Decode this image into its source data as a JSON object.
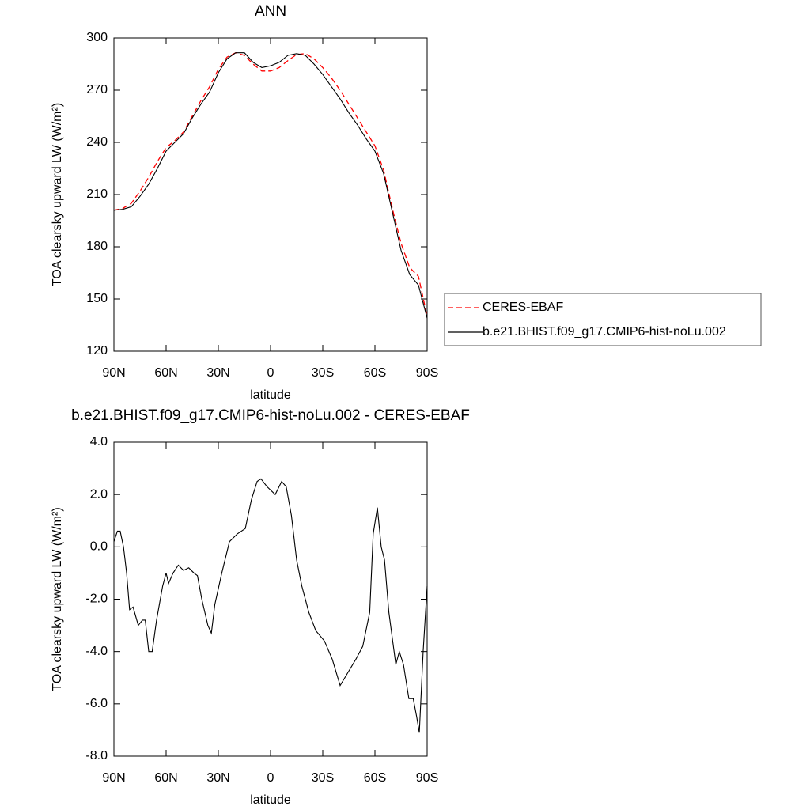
{
  "chart_data": [
    {
      "type": "line",
      "title": "ANN",
      "xlabel": "latitude",
      "ylabel": "TOA clearsky upward LW (W/m²)",
      "x": [
        90,
        85,
        80,
        75,
        70,
        65,
        60,
        55,
        50,
        45,
        40,
        35,
        30,
        25,
        20,
        15,
        10,
        5,
        0,
        -5,
        -10,
        -15,
        -20,
        -25,
        -30,
        -35,
        -40,
        -45,
        -50,
        -55,
        -60,
        -65,
        -70,
        -75,
        -80,
        -85,
        -90
      ],
      "series": [
        {
          "name": "CERES-EBAF",
          "color": "#ff0000",
          "dash": true,
          "values": [
            201,
            202,
            205,
            212,
            220,
            229,
            237,
            241,
            246,
            255,
            264,
            272,
            282,
            289,
            291.5,
            290,
            285,
            281,
            281,
            283,
            287,
            290.5,
            291,
            288,
            283,
            277,
            270,
            262,
            254,
            246,
            238,
            224,
            202,
            182,
            168,
            163,
            140
          ]
        },
        {
          "name": "b.e21.BHIST.f09_g17.CMIP6-hist-noLu.002",
          "color": "#000000",
          "dash": false,
          "values": [
            201,
            201.5,
            203,
            209,
            216,
            225,
            235,
            240,
            245,
            254,
            262,
            269,
            280,
            288,
            291.5,
            291.5,
            286,
            283,
            284,
            286,
            290,
            291,
            290,
            285,
            279,
            272,
            265,
            257,
            250,
            242,
            235,
            222,
            200,
            178,
            164,
            158,
            139
          ]
        }
      ],
      "xlim": [
        90,
        -90
      ],
      "xticks": [
        {
          "value": 90,
          "label": "90N"
        },
        {
          "value": 60,
          "label": "60N"
        },
        {
          "value": 30,
          "label": "30N"
        },
        0,
        {
          "value": -30,
          "label": "30S"
        },
        {
          "value": -60,
          "label": "60S"
        },
        {
          "value": -90,
          "label": "90S"
        }
      ],
      "ylim": [
        120,
        300
      ],
      "yticks": [
        120,
        150,
        180,
        210,
        240,
        270,
        300
      ],
      "legend": "right"
    },
    {
      "type": "line",
      "title": "b.e21.BHIST.f09_g17.CMIP6-hist-noLu.002 - CERES-EBAF",
      "xlabel": "latitude",
      "ylabel": "TOA clearsky upward LW (W/m²)",
      "x": [
        90,
        88,
        86.4,
        84.5,
        82.7,
        81,
        79,
        76,
        73.6,
        72,
        70,
        68,
        65.5,
        62,
        60,
        58.6,
        56,
        53,
        50,
        47,
        44,
        42,
        39.5,
        36,
        34,
        32,
        28,
        23.6,
        19,
        14.5,
        11,
        7.7,
        5.5,
        2,
        -2.7,
        -6.4,
        -9,
        -12,
        -15,
        -18,
        -22,
        -26,
        -31,
        -35.5,
        -40,
        -44.5,
        -49,
        -53,
        -57,
        -59,
        -61.4,
        -63.6,
        -65.5,
        -68,
        -72,
        -74,
        -76.4,
        -79.5,
        -82,
        -84,
        -85.5,
        -87.7,
        -90
      ],
      "series": [
        {
          "name": null,
          "color": "#000000",
          "dash": false,
          "values": [
            0.2,
            0.6,
            0.6,
            0.0,
            -1.0,
            -2.4,
            -2.3,
            -3.0,
            -2.8,
            -2.8,
            -4.0,
            -4.0,
            -2.8,
            -1.5,
            -1.0,
            -1.4,
            -1.0,
            -0.7,
            -0.9,
            -0.8,
            -1.0,
            -1.1,
            -2.0,
            -3.0,
            -3.3,
            -2.2,
            -1.0,
            0.2,
            0.5,
            0.7,
            1.8,
            2.5,
            2.6,
            2.3,
            2.0,
            2.5,
            2.3,
            1.2,
            -0.5,
            -1.5,
            -2.5,
            -3.2,
            -3.6,
            -4.3,
            -5.3,
            -4.8,
            -4.3,
            -3.8,
            -2.5,
            0.5,
            1.5,
            0.0,
            -0.5,
            -2.5,
            -4.5,
            -4.0,
            -4.5,
            -5.8,
            -5.8,
            -6.5,
            -7.1,
            -4.0,
            -1.5
          ]
        }
      ],
      "xlim": [
        90,
        -90
      ],
      "xticks": [
        {
          "value": 90,
          "label": "90N"
        },
        {
          "value": 60,
          "label": "60N"
        },
        {
          "value": 30,
          "label": "30N"
        },
        0,
        {
          "value": -30,
          "label": "30S"
        },
        {
          "value": -60,
          "label": "60S"
        },
        {
          "value": -90,
          "label": "90S"
        }
      ],
      "ylim": [
        -8,
        4
      ],
      "yticks": [
        {
          "value": -8,
          "label": "-8.0"
        },
        {
          "value": -6,
          "label": "-6.0"
        },
        {
          "value": -4,
          "label": "-4.0"
        },
        {
          "value": -2,
          "label": "-2.0"
        },
        {
          "value": 0,
          "label": "0.0"
        },
        {
          "value": 2,
          "label": "2.0"
        },
        {
          "value": 4,
          "label": "4.0"
        }
      ]
    }
  ]
}
